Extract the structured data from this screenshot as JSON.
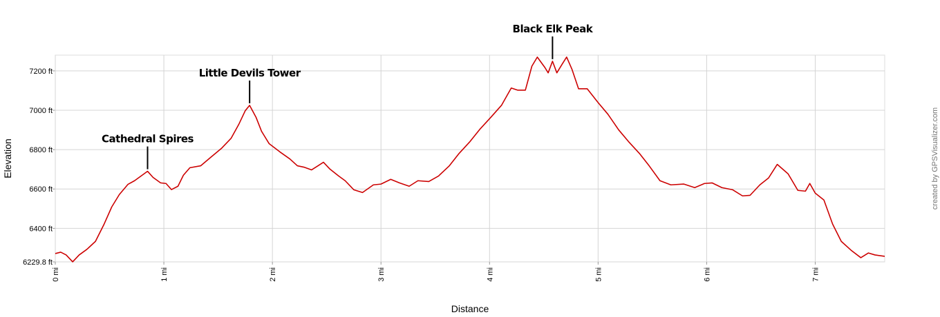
{
  "chart_data": {
    "type": "line",
    "y_axis_label": "Elevation",
    "x_axis_label": "Distance",
    "credit": "created by GPSVisualizer.com",
    "color": "#cc0000",
    "grid": true,
    "xlim": [
      0,
      7.64
    ],
    "ylim": [
      6229.8,
      7280
    ],
    "xticks": [
      {
        "value": 0,
        "label": "0 mi"
      },
      {
        "value": 1,
        "label": "1 mi"
      },
      {
        "value": 2,
        "label": "2 mi"
      },
      {
        "value": 3,
        "label": "3 mi"
      },
      {
        "value": 4,
        "label": "4 mi"
      },
      {
        "value": 5,
        "label": "5 mi"
      },
      {
        "value": 6,
        "label": "6 mi"
      },
      {
        "value": 7,
        "label": "7 mi"
      }
    ],
    "yticks": [
      {
        "value": 6229.8,
        "label": "6229.8 ft"
      },
      {
        "value": 6400,
        "label": "6400 ft"
      },
      {
        "value": 6600,
        "label": "6600 ft"
      },
      {
        "value": 6800,
        "label": "6800 ft"
      },
      {
        "value": 7000,
        "label": "7000 ft"
      },
      {
        "value": 7200,
        "label": "7200 ft"
      }
    ],
    "x": [
      0,
      0.05,
      0.1,
      0.16,
      0.22,
      0.29,
      0.37,
      0.45,
      0.52,
      0.59,
      0.67,
      0.73,
      0.8,
      0.85,
      0.9,
      0.97,
      1.02,
      1.07,
      1.13,
      1.18,
      1.24,
      1.34,
      1.43,
      1.53,
      1.62,
      1.69,
      1.75,
      1.79,
      1.85,
      1.9,
      1.97,
      2.07,
      2.16,
      2.23,
      2.29,
      2.36,
      2.42,
      2.47,
      2.53,
      2.61,
      2.67,
      2.75,
      2.83,
      2.93,
      3.0,
      3.09,
      3.17,
      3.26,
      3.34,
      3.44,
      3.53,
      3.63,
      3.72,
      3.82,
      3.91,
      4.01,
      4.11,
      4.2,
      4.26,
      4.33,
      4.39,
      4.44,
      4.51,
      4.54,
      4.58,
      4.62,
      4.67,
      4.71,
      4.76,
      4.82,
      4.9,
      5.0,
      5.09,
      5.19,
      5.28,
      5.38,
      5.47,
      5.57,
      5.67,
      5.79,
      5.89,
      5.98,
      6.05,
      6.14,
      6.24,
      6.33,
      6.4,
      6.49,
      6.57,
      6.65,
      6.75,
      6.84,
      6.91,
      6.95,
      7.0,
      7.08,
      7.16,
      7.24,
      7.33,
      7.42,
      7.49,
      7.55,
      7.64
    ],
    "values": [
      6272,
      6279,
      6265,
      6230,
      6265,
      6293,
      6334,
      6422,
      6509,
      6572,
      6624,
      6642,
      6670,
      6690,
      6659,
      6631,
      6628,
      6597,
      6614,
      6670,
      6708,
      6718,
      6760,
      6806,
      6858,
      6928,
      6998,
      7025,
      6963,
      6893,
      6830,
      6788,
      6753,
      6718,
      6711,
      6697,
      6718,
      6736,
      6701,
      6666,
      6642,
      6596,
      6582,
      6621,
      6625,
      6649,
      6631,
      6614,
      6642,
      6638,
      6666,
      6718,
      6781,
      6841,
      6903,
      6963,
      7025,
      7113,
      7102,
      7102,
      7224,
      7270,
      7217,
      7190,
      7249,
      7190,
      7235,
      7270,
      7207,
      7109,
      7109,
      7039,
      6980,
      6900,
      6841,
      6781,
      6718,
      6642,
      6621,
      6625,
      6607,
      6628,
      6631,
      6607,
      6596,
      6565,
      6568,
      6621,
      6656,
      6725,
      6677,
      6593,
      6589,
      6628,
      6579,
      6544,
      6422,
      6334,
      6289,
      6251,
      6275,
      6265,
      6258
    ],
    "annotations": [
      {
        "text": "Cathedral Spires",
        "x": 0.85,
        "y": 6690
      },
      {
        "text": "Little Devils Tower",
        "x": 1.79,
        "y": 7025
      },
      {
        "text": "Black Elk Peak",
        "x": 4.58,
        "y": 7249
      }
    ]
  }
}
